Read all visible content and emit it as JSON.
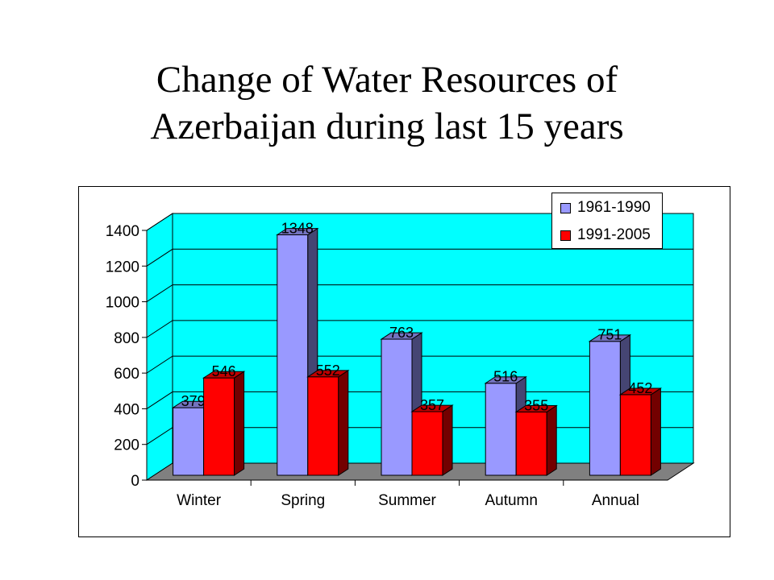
{
  "slide": {
    "title_line1": "Change of Water Resources of",
    "title_line2": "Azerbaijan during last 15 years"
  },
  "chart_data": {
    "type": "bar",
    "title": "",
    "xlabel": "",
    "ylabel": "",
    "categories": [
      "Winter",
      "Spring",
      "Summer",
      "Autumn",
      "Annual"
    ],
    "series": [
      {
        "name": "1961-1990",
        "values": [
          379,
          1348,
          763,
          516,
          751
        ],
        "color": "#9999ff"
      },
      {
        "name": "1991-2005",
        "values": [
          546,
          552,
          357,
          355,
          452
        ],
        "color": "#ff0000"
      }
    ],
    "ylim": [
      0,
      1400
    ],
    "yticks": [
      0,
      200,
      400,
      600,
      800,
      1000,
      1200,
      1400
    ],
    "grid": true,
    "legend": "top-right",
    "style": "3d-clustered",
    "colors": {
      "wall": "#00ffff",
      "floor": "#808080"
    }
  }
}
